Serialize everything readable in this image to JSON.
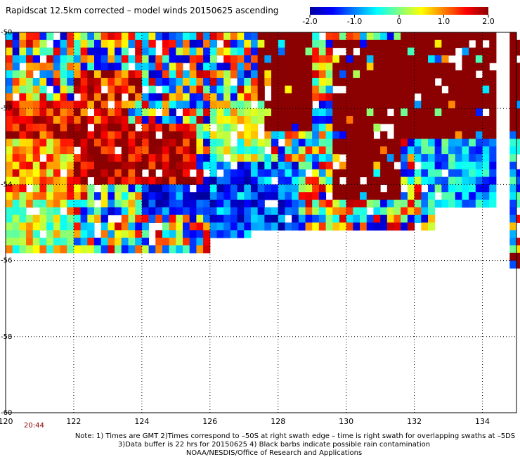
{
  "title": "Rapidscat 12.5km corrected – model winds 20150625 ascending",
  "timestamp": "20:44",
  "notes": [
    "Note: 1) Times are GMT 2)Times correspond to –50S at right swath edge – time is right swath for overlapping swaths at –5DS",
    "3)Data buffer is 22 hrs for 20150625 4) Black barbs indicate possible rain contamination",
    "NOAA/NESDIS/Office of Research and Applications"
  ],
  "chart_data": {
    "type": "heatmap",
    "xlim": [
      120,
      135
    ],
    "ylim": [
      -60,
      -50
    ],
    "x_ticks": [
      120,
      122,
      124,
      126,
      128,
      130,
      132,
      134
    ],
    "x_tick_labels": [
      "120",
      "122",
      "124",
      "126",
      "128",
      "130",
      "132",
      "134"
    ],
    "y_ticks": [
      -50,
      -52,
      -54,
      -56,
      -58,
      -60
    ],
    "y_tick_labels": [
      "-50",
      "-52",
      "-54",
      "-56",
      "-58",
      "-60"
    ],
    "grid": true,
    "colorbar": {
      "range": [
        -2.0,
        2.0
      ],
      "ticks": [
        -2.0,
        -1.0,
        0,
        1.0,
        2.0
      ],
      "tick_labels": [
        "-2.0",
        "-1.0",
        "0",
        "1.0",
        "2.0"
      ],
      "colors": [
        "#0000a0",
        "#0000ff",
        "#0080ff",
        "#00ffff",
        "#80ff80",
        "#ffff00",
        "#ff8000",
        "#ff0000",
        "#8b0000"
      ]
    },
    "regions": [
      {
        "lon": [
          120.0,
          123.5
        ],
        "lat": [
          -53.0,
          -52.0
        ],
        "value": 1.6
      },
      {
        "lon": [
          121.5,
          125.5
        ],
        "lat": [
          -54.2,
          -52.5
        ],
        "value": 1.9
      },
      {
        "lon": [
          122.0,
          124.0
        ],
        "lat": [
          -52.0,
          -51.2
        ],
        "value": 1.5
      },
      {
        "lon": [
          120.0,
          122.0
        ],
        "lat": [
          -54.5,
          -53.0
        ],
        "value": 0.9
      },
      {
        "lon": [
          124.0,
          126.0
        ],
        "lat": [
          -55.0,
          -54.2
        ],
        "value": -1.5
      },
      {
        "lon": [
          127.3,
          129.0
        ],
        "lat": [
          -52.8,
          -50.0
        ],
        "value": 2.0
      },
      {
        "lon": [
          129.5,
          131.5
        ],
        "lat": [
          -54.5,
          -50.3
        ],
        "value": 2.0
      },
      {
        "lon": [
          131.5,
          135.0
        ],
        "lat": [
          -53.0,
          -50.0
        ],
        "value": 2.0
      },
      {
        "lon": [
          134.6,
          135.0
        ],
        "lat": [
          -56.8,
          -56.0
        ],
        "value": 2.0
      },
      {
        "lon": [
          126.0,
          127.5
        ],
        "lat": [
          -53.5,
          -52.0
        ],
        "value": 0.2
      },
      {
        "lon": [
          132.0,
          135.0
        ],
        "lat": [
          -54.8,
          -53.0
        ],
        "value": -0.8
      },
      {
        "lon": [
          126.0,
          128.5
        ],
        "lat": [
          -55.5,
          -53.5
        ],
        "value": -1.2
      },
      {
        "lon": [
          120.0,
          122.0
        ],
        "lat": [
          -56.0,
          -54.5
        ],
        "value": 0.3
      }
    ]
  }
}
